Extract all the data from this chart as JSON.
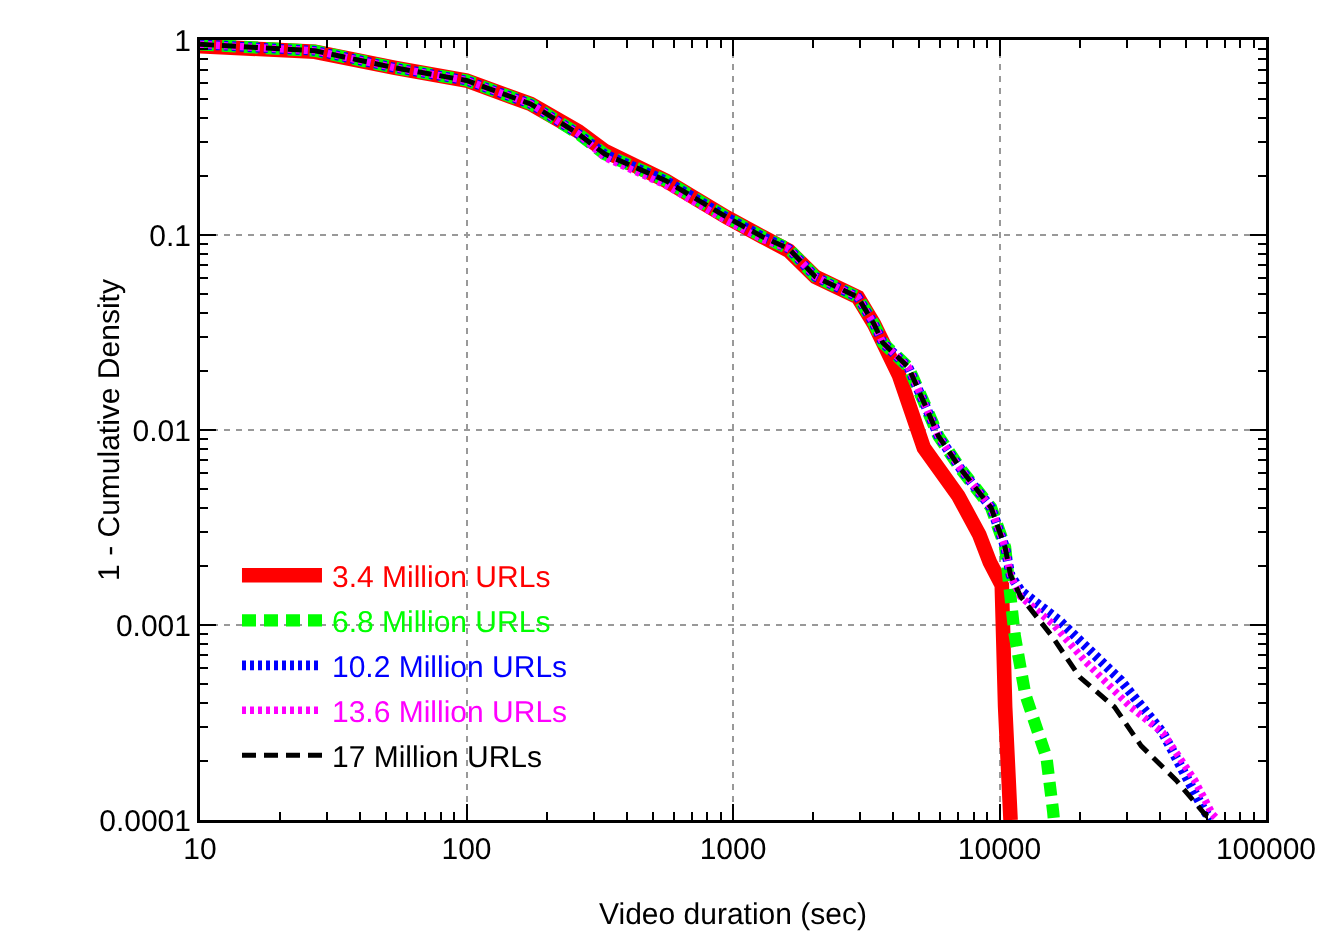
{
  "chart_data": {
    "type": "line",
    "xlabel": "Video duration (sec)",
    "ylabel": "1 - Cumulative Density",
    "log": "xy",
    "grid": true,
    "legend": "bottom left",
    "marker": "none",
    "xlim": [
      10,
      100000
    ],
    "xticks": [
      10,
      100,
      1000,
      10000,
      100000
    ],
    "ylim": [
      0.0001,
      1
    ],
    "yticks": [
      0.0001,
      0.001,
      0.01,
      0.1,
      1
    ],
    "series": [
      {
        "name": "3.4 Million URLs",
        "color": "#ff0000",
        "line_style": "solid",
        "x": [
          10,
          27,
          54,
          100,
          174,
          263,
          330,
          560,
          950,
          1290,
          1620,
          2040,
          2940,
          3380,
          4200,
          5200,
          7000,
          8400,
          9200,
          10200,
          10500,
          11000
        ],
        "values": [
          0.93,
          0.87,
          0.72,
          0.62,
          0.47,
          0.34,
          0.27,
          0.19,
          0.123,
          0.098,
          0.083,
          0.061,
          0.048,
          0.035,
          0.019,
          0.0081,
          0.0046,
          0.0029,
          0.0021,
          0.0016,
          0.00038,
          0.0001
        ]
      },
      {
        "name": "6.8 Million URLs",
        "color": "#00ff00",
        "line_style": "dashed",
        "x": [
          10,
          27,
          54,
          100,
          174,
          263,
          330,
          560,
          950,
          1290,
          1620,
          2040,
          2940,
          3380,
          3650,
          4550,
          5200,
          5900,
          7160,
          9300,
          10500,
          11400,
          12500,
          15000,
          15900,
          16000
        ],
        "values": [
          0.95,
          0.88,
          0.72,
          0.62,
          0.47,
          0.33,
          0.26,
          0.19,
          0.123,
          0.098,
          0.085,
          0.061,
          0.048,
          0.035,
          0.028,
          0.021,
          0.0139,
          0.0093,
          0.0063,
          0.004,
          0.0025,
          0.00089,
          0.00044,
          0.00021,
          0.00011,
          0.0001
        ]
      },
      {
        "name": "10.2 Million URLs",
        "color": "#0000ff",
        "line_style": "dotted",
        "x": [
          10,
          27,
          54,
          100,
          174,
          263,
          330,
          560,
          950,
          1290,
          1620,
          2040,
          2940,
          3380,
          3650,
          4550,
          5200,
          5900,
          7160,
          9300,
          10500,
          11000,
          12000,
          16800,
          28500,
          41000,
          58000,
          62000
        ],
        "values": [
          0.95,
          0.88,
          0.72,
          0.62,
          0.47,
          0.33,
          0.26,
          0.19,
          0.123,
          0.098,
          0.085,
          0.061,
          0.048,
          0.035,
          0.028,
          0.021,
          0.0139,
          0.0093,
          0.0063,
          0.004,
          0.0025,
          0.0018,
          0.0015,
          0.00105,
          0.00052,
          0.00028,
          0.000115,
          0.0001
        ]
      },
      {
        "name": "13.6 Million URLs",
        "color": "#ff00ff",
        "line_style": "dotted",
        "x": [
          10,
          27,
          54,
          100,
          174,
          263,
          330,
          560,
          950,
          1290,
          1620,
          2040,
          2940,
          3380,
          3650,
          4550,
          5200,
          5900,
          7160,
          9300,
          10500,
          11000,
          12000,
          16000,
          21000,
          31000,
          41000,
          54000,
          63000,
          66000
        ],
        "values": [
          0.95,
          0.88,
          0.72,
          0.62,
          0.47,
          0.33,
          0.25,
          0.18,
          0.118,
          0.095,
          0.085,
          0.061,
          0.048,
          0.035,
          0.028,
          0.021,
          0.0139,
          0.0093,
          0.0063,
          0.004,
          0.0025,
          0.0018,
          0.0014,
          0.001,
          0.00065,
          0.00038,
          0.00028,
          0.00016,
          0.000107,
          0.0001
        ]
      },
      {
        "name": "17 Million URLs",
        "color": "#000000",
        "line_style": "dashed",
        "x": [
          10,
          27,
          54,
          100,
          174,
          263,
          330,
          560,
          950,
          1290,
          1620,
          2040,
          2940,
          3380,
          3650,
          4550,
          5200,
          5900,
          7160,
          9300,
          10500,
          11000,
          12000,
          15800,
          20000,
          27000,
          34000,
          46000,
          59000,
          62000
        ],
        "values": [
          0.95,
          0.88,
          0.72,
          0.62,
          0.47,
          0.33,
          0.26,
          0.19,
          0.123,
          0.098,
          0.085,
          0.061,
          0.048,
          0.035,
          0.028,
          0.021,
          0.0139,
          0.0093,
          0.0063,
          0.004,
          0.0025,
          0.0018,
          0.0014,
          0.00087,
          0.00054,
          0.00038,
          0.00024,
          0.00016,
          0.000107,
          0.0001
        ]
      }
    ]
  }
}
